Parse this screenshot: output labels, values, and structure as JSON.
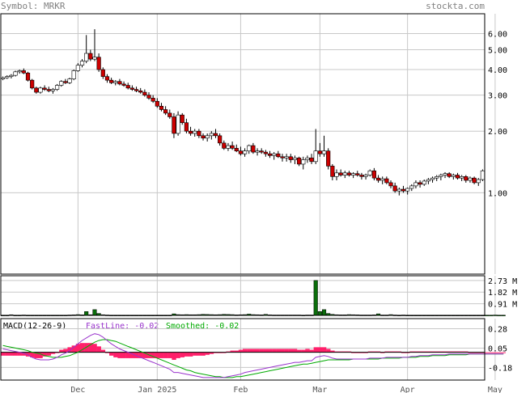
{
  "header": {
    "symbol_label": "Symbol: MRKR",
    "site_label": "stockta.com"
  },
  "colors": {
    "header_text": "#808080",
    "up_candle": "#ffffff",
    "down_candle": "#cc0000",
    "volume_bar": "#0a6e0a",
    "macd_fast": "#9933cc",
    "macd_smooth": "#00aa00",
    "macd_hist": "#ff1f6a",
    "grid": "#c8c8c8"
  },
  "chart_data": [
    {
      "type": "candlestick",
      "name": "price",
      "scale": "log",
      "ylim": [
        0.4,
        7.5
      ],
      "y_ticks": [
        1.0,
        2.0,
        3.0,
        4.0,
        5.0,
        6.0
      ],
      "y_tick_labels": [
        "1.00",
        "2.00",
        "3.00",
        "4.00",
        "5.00",
        "6.00"
      ],
      "x_labels": [
        "Dec",
        "Jan 2025",
        "Feb",
        "Mar",
        "Apr",
        "May"
      ],
      "x_label_index": [
        18,
        37,
        57,
        76,
        97,
        118
      ],
      "candles": [
        [
          3.6,
          3.7,
          3.55,
          3.65
        ],
        [
          3.65,
          3.75,
          3.6,
          3.7
        ],
        [
          3.7,
          3.8,
          3.62,
          3.75
        ],
        [
          3.75,
          3.95,
          3.7,
          3.9
        ],
        [
          3.9,
          4.0,
          3.82,
          3.95
        ],
        [
          3.95,
          4.05,
          3.8,
          3.85
        ],
        [
          3.85,
          3.9,
          3.5,
          3.55
        ],
        [
          3.55,
          3.6,
          3.2,
          3.25
        ],
        [
          3.25,
          3.3,
          3.05,
          3.1
        ],
        [
          3.1,
          3.3,
          3.05,
          3.25
        ],
        [
          3.25,
          3.35,
          3.15,
          3.2
        ],
        [
          3.2,
          3.3,
          3.1,
          3.15
        ],
        [
          3.15,
          3.25,
          3.05,
          3.2
        ],
        [
          3.2,
          3.4,
          3.15,
          3.35
        ],
        [
          3.35,
          3.55,
          3.3,
          3.5
        ],
        [
          3.5,
          3.6,
          3.4,
          3.45
        ],
        [
          3.45,
          3.65,
          3.4,
          3.6
        ],
        [
          3.6,
          4.0,
          3.55,
          3.95
        ],
        [
          3.95,
          4.3,
          3.9,
          4.2
        ],
        [
          4.2,
          4.5,
          4.1,
          4.4
        ],
        [
          4.4,
          5.9,
          4.3,
          4.8
        ],
        [
          4.8,
          5.0,
          4.4,
          4.5
        ],
        [
          4.5,
          6.3,
          4.4,
          4.6
        ],
        [
          4.6,
          4.8,
          3.9,
          4.0
        ],
        [
          4.0,
          4.1,
          3.6,
          3.7
        ],
        [
          3.7,
          3.8,
          3.45,
          3.55
        ],
        [
          3.55,
          3.65,
          3.4,
          3.45
        ],
        [
          3.45,
          3.55,
          3.35,
          3.5
        ],
        [
          3.5,
          3.6,
          3.35,
          3.4
        ],
        [
          3.4,
          3.5,
          3.3,
          3.35
        ],
        [
          3.35,
          3.45,
          3.2,
          3.25
        ],
        [
          3.25,
          3.35,
          3.15,
          3.2
        ],
        [
          3.2,
          3.3,
          3.1,
          3.15
        ],
        [
          3.15,
          3.25,
          3.05,
          3.1
        ],
        [
          3.1,
          3.2,
          2.95,
          3.0
        ],
        [
          3.0,
          3.1,
          2.85,
          2.9
        ],
        [
          2.9,
          3.0,
          2.75,
          2.8
        ],
        [
          2.8,
          2.9,
          2.6,
          2.65
        ],
        [
          2.65,
          2.75,
          2.5,
          2.55
        ],
        [
          2.55,
          2.65,
          2.4,
          2.45
        ],
        [
          2.45,
          2.55,
          2.3,
          2.35
        ],
        [
          2.35,
          2.45,
          1.85,
          1.95
        ],
        [
          1.95,
          2.5,
          1.9,
          2.4
        ],
        [
          2.4,
          2.45,
          2.15,
          2.2
        ],
        [
          2.2,
          2.3,
          1.95,
          2.0
        ],
        [
          2.0,
          2.1,
          1.9,
          1.95
        ],
        [
          1.95,
          2.05,
          1.88,
          2.0
        ],
        [
          2.0,
          2.05,
          1.85,
          1.9
        ],
        [
          1.9,
          1.95,
          1.8,
          1.85
        ],
        [
          1.85,
          1.95,
          1.78,
          1.9
        ],
        [
          1.9,
          2.0,
          1.82,
          1.95
        ],
        [
          1.95,
          2.05,
          1.85,
          1.9
        ],
        [
          1.9,
          1.95,
          1.7,
          1.75
        ],
        [
          1.75,
          1.8,
          1.62,
          1.65
        ],
        [
          1.65,
          1.75,
          1.6,
          1.7
        ],
        [
          1.7,
          1.78,
          1.62,
          1.65
        ],
        [
          1.65,
          1.72,
          1.58,
          1.6
        ],
        [
          1.6,
          1.68,
          1.52,
          1.55
        ],
        [
          1.55,
          1.65,
          1.5,
          1.6
        ],
        [
          1.6,
          1.72,
          1.55,
          1.7
        ],
        [
          1.7,
          1.75,
          1.55,
          1.58
        ],
        [
          1.58,
          1.65,
          1.52,
          1.6
        ],
        [
          1.6,
          1.65,
          1.55,
          1.58
        ],
        [
          1.58,
          1.62,
          1.5,
          1.55
        ],
        [
          1.55,
          1.6,
          1.48,
          1.52
        ],
        [
          1.52,
          1.58,
          1.45,
          1.55
        ],
        [
          1.55,
          1.6,
          1.48,
          1.5
        ],
        [
          1.5,
          1.55,
          1.42,
          1.48
        ],
        [
          1.48,
          1.55,
          1.42,
          1.5
        ],
        [
          1.5,
          1.55,
          1.4,
          1.45
        ],
        [
          1.45,
          1.52,
          1.38,
          1.48
        ],
        [
          1.48,
          1.5,
          1.35,
          1.38
        ],
        [
          1.38,
          1.5,
          1.3,
          1.45
        ],
        [
          1.45,
          1.52,
          1.4,
          1.48
        ],
        [
          1.48,
          1.55,
          1.38,
          1.42
        ],
        [
          1.42,
          2.05,
          1.38,
          1.6
        ],
        [
          1.6,
          1.75,
          1.5,
          1.55
        ],
        [
          1.55,
          1.9,
          1.5,
          1.6
        ],
        [
          1.6,
          1.65,
          1.3,
          1.35
        ],
        [
          1.35,
          1.38,
          1.15,
          1.2
        ],
        [
          1.2,
          1.3,
          1.15,
          1.25
        ],
        [
          1.25,
          1.3,
          1.2,
          1.22
        ],
        [
          1.22,
          1.28,
          1.18,
          1.25
        ],
        [
          1.25,
          1.28,
          1.2,
          1.22
        ],
        [
          1.22,
          1.26,
          1.18,
          1.24
        ],
        [
          1.24,
          1.28,
          1.2,
          1.22
        ],
        [
          1.22,
          1.25,
          1.16,
          1.2
        ],
        [
          1.2,
          1.24,
          1.16,
          1.22
        ],
        [
          1.22,
          1.3,
          1.2,
          1.28
        ],
        [
          1.28,
          1.32,
          1.15,
          1.18
        ],
        [
          1.18,
          1.22,
          1.12,
          1.15
        ],
        [
          1.15,
          1.2,
          1.1,
          1.17
        ],
        [
          1.17,
          1.2,
          1.1,
          1.12
        ],
        [
          1.12,
          1.15,
          1.05,
          1.08
        ],
        [
          1.08,
          1.12,
          1.0,
          1.02
        ],
        [
          1.02,
          1.06,
          0.97,
          1.04
        ],
        [
          1.04,
          1.08,
          1.0,
          1.02
        ],
        [
          1.02,
          1.06,
          0.98,
          1.05
        ],
        [
          1.05,
          1.1,
          1.02,
          1.08
        ],
        [
          1.08,
          1.15,
          1.05,
          1.12
        ],
        [
          1.12,
          1.15,
          1.06,
          1.1
        ],
        [
          1.1,
          1.16,
          1.08,
          1.14
        ],
        [
          1.14,
          1.18,
          1.1,
          1.16
        ],
        [
          1.16,
          1.2,
          1.12,
          1.18
        ],
        [
          1.18,
          1.22,
          1.14,
          1.2
        ],
        [
          1.2,
          1.24,
          1.15,
          1.22
        ],
        [
          1.22,
          1.26,
          1.18,
          1.24
        ],
        [
          1.24,
          1.26,
          1.18,
          1.2
        ],
        [
          1.2,
          1.24,
          1.16,
          1.22
        ],
        [
          1.22,
          1.25,
          1.16,
          1.18
        ],
        [
          1.18,
          1.22,
          1.14,
          1.2
        ],
        [
          1.2,
          1.22,
          1.12,
          1.15
        ],
        [
          1.15,
          1.2,
          1.12,
          1.18
        ],
        [
          1.18,
          1.2,
          1.1,
          1.12
        ],
        [
          1.12,
          1.18,
          1.08,
          1.16
        ],
        [
          1.16,
          1.3,
          1.14,
          1.28
        ]
      ]
    },
    {
      "type": "bar",
      "name": "volume",
      "unit": "M",
      "ylim": [
        0,
        3.1
      ],
      "y_ticks": [
        0.91,
        1.82,
        2.73
      ],
      "y_tick_labels": [
        "0.91 M",
        "1.82 M",
        "2.73 M"
      ],
      "values": [
        0.02,
        0.02,
        0.05,
        0.02,
        0.02,
        0.03,
        0.02,
        0.02,
        0.02,
        0.02,
        0.02,
        0.02,
        0.02,
        0.02,
        0.02,
        0.02,
        0.03,
        0.04,
        0.06,
        0.04,
        0.3,
        0.05,
        0.45,
        0.15,
        0.05,
        0.03,
        0.02,
        0.02,
        0.02,
        0.02,
        0.02,
        0.02,
        0.02,
        0.02,
        0.02,
        0.02,
        0.02,
        0.02,
        0.02,
        0.02,
        0.02,
        0.12,
        0.06,
        0.05,
        0.06,
        0.05,
        0.05,
        0.06,
        0.08,
        0.07,
        0.06,
        0.05,
        0.06,
        0.08,
        0.07,
        0.06,
        0.04,
        0.05,
        0.06,
        0.1,
        0.06,
        0.05,
        0.04,
        0.08,
        0.04,
        0.03,
        0.03,
        0.03,
        0.03,
        0.03,
        0.03,
        0.03,
        0.02,
        0.03,
        0.03,
        2.73,
        0.3,
        0.45,
        0.15,
        0.08,
        0.05,
        0.04,
        0.04,
        0.06,
        0.05,
        0.04,
        0.03,
        0.03,
        0.03,
        0.04,
        0.12,
        0.03,
        0.03,
        0.06,
        0.03,
        0.02,
        0.03,
        0.02,
        0.02,
        0.02,
        0.02,
        0.02,
        0.02,
        0.02,
        0.02,
        0.02,
        0.02,
        0.02,
        0.02,
        0.02,
        0.02,
        0.02,
        0.02,
        0.02,
        0.02,
        0.02,
        0.02,
        0.02,
        0.03,
        0.02,
        0.02
      ]
    },
    {
      "type": "line",
      "name": "macd",
      "title": "MACD(12-26-9)",
      "fast_label": "FastLine: -0.02",
      "smooth_label": "Smoothed: -0.02",
      "ylim": [
        -0.33,
        0.4
      ],
      "y_ticks": [
        0.28,
        0.05,
        -0.18
      ],
      "y_tick_labels": [
        "0.28",
        "0.05",
        "-0.18"
      ],
      "fast": [
        0.04,
        0.03,
        0.02,
        0.01,
        0.0,
        -0.01,
        -0.03,
        -0.06,
        -0.08,
        -0.09,
        -0.09,
        -0.09,
        -0.08,
        -0.06,
        -0.03,
        -0.01,
        0.02,
        0.06,
        0.1,
        0.14,
        0.17,
        0.2,
        0.22,
        0.21,
        0.18,
        0.14,
        0.1,
        0.07,
        0.04,
        0.02,
        0.0,
        -0.02,
        -0.04,
        -0.06,
        -0.08,
        -0.1,
        -0.12,
        -0.14,
        -0.16,
        -0.18,
        -0.2,
        -0.24,
        -0.24,
        -0.25,
        -0.26,
        -0.27,
        -0.28,
        -0.29,
        -0.3,
        -0.3,
        -0.3,
        -0.3,
        -0.3,
        -0.3,
        -0.29,
        -0.28,
        -0.27,
        -0.26,
        -0.24,
        -0.23,
        -0.22,
        -0.21,
        -0.2,
        -0.19,
        -0.18,
        -0.17,
        -0.16,
        -0.15,
        -0.14,
        -0.13,
        -0.12,
        -0.12,
        -0.11,
        -0.1,
        -0.1,
        -0.06,
        -0.05,
        -0.04,
        -0.05,
        -0.07,
        -0.08,
        -0.08,
        -0.08,
        -0.08,
        -0.08,
        -0.08,
        -0.08,
        -0.08,
        -0.07,
        -0.07,
        -0.07,
        -0.07,
        -0.06,
        -0.06,
        -0.06,
        -0.06,
        -0.06,
        -0.06,
        -0.05,
        -0.05,
        -0.04,
        -0.04,
        -0.04,
        -0.03,
        -0.03,
        -0.03,
        -0.03,
        -0.02,
        -0.02,
        -0.02,
        -0.02,
        -0.02,
        -0.02,
        -0.02,
        -0.02,
        -0.02,
        -0.02,
        -0.02,
        -0.02,
        -0.02,
        -0.02
      ],
      "smooth": [
        0.08,
        0.07,
        0.06,
        0.05,
        0.04,
        0.03,
        0.02,
        0.0,
        -0.01,
        -0.02,
        -0.04,
        -0.05,
        -0.06,
        -0.06,
        -0.06,
        -0.05,
        -0.04,
        -0.02,
        0.0,
        0.03,
        0.06,
        0.09,
        0.12,
        0.14,
        0.15,
        0.15,
        0.14,
        0.13,
        0.11,
        0.09,
        0.07,
        0.05,
        0.03,
        0.01,
        -0.01,
        -0.03,
        -0.05,
        -0.07,
        -0.09,
        -0.11,
        -0.13,
        -0.15,
        -0.17,
        -0.19,
        -0.21,
        -0.22,
        -0.24,
        -0.25,
        -0.26,
        -0.27,
        -0.28,
        -0.29,
        -0.29,
        -0.3,
        -0.3,
        -0.3,
        -0.29,
        -0.29,
        -0.28,
        -0.27,
        -0.26,
        -0.25,
        -0.24,
        -0.23,
        -0.22,
        -0.21,
        -0.2,
        -0.19,
        -0.18,
        -0.17,
        -0.16,
        -0.15,
        -0.14,
        -0.14,
        -0.13,
        -0.12,
        -0.11,
        -0.1,
        -0.09,
        -0.09,
        -0.09,
        -0.09,
        -0.09,
        -0.09,
        -0.08,
        -0.08,
        -0.08,
        -0.08,
        -0.08,
        -0.08,
        -0.08,
        -0.07,
        -0.07,
        -0.07,
        -0.07,
        -0.07,
        -0.06,
        -0.06,
        -0.06,
        -0.06,
        -0.05,
        -0.05,
        -0.05,
        -0.04,
        -0.04,
        -0.04,
        -0.04,
        -0.03,
        -0.03,
        -0.03,
        -0.03,
        -0.03,
        -0.02,
        -0.02,
        -0.02,
        -0.02,
        -0.02,
        -0.02,
        -0.02,
        -0.02,
        -0.02
      ]
    }
  ]
}
